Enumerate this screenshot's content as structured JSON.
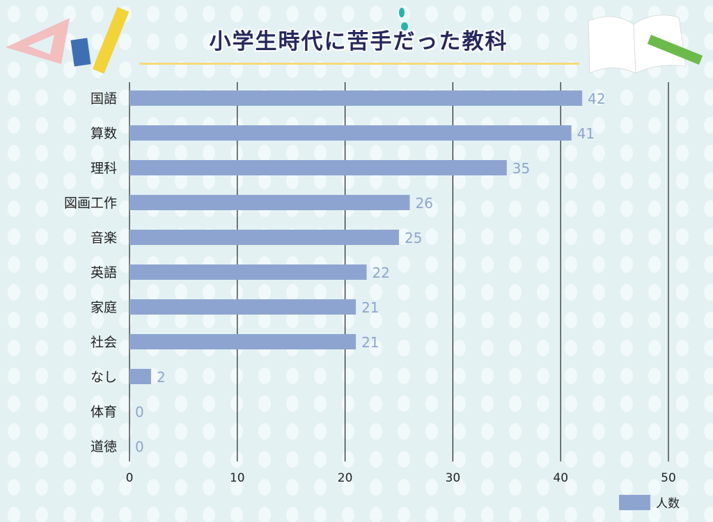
{
  "title": "小学生時代に苦手だった教科",
  "chart_data": {
    "type": "bar",
    "orientation": "horizontal",
    "title": "小学生時代に苦手だった教科",
    "categories": [
      "国語",
      "算数",
      "理科",
      "図画工作",
      "音楽",
      "英語",
      "家庭",
      "社会",
      "なし",
      "体育",
      "道徳"
    ],
    "series": [
      {
        "name": "人数",
        "values": [
          42,
          41,
          35,
          26,
          25,
          22,
          21,
          21,
          2,
          0,
          0
        ],
        "color": "#8ea4d0"
      }
    ],
    "xlim": [
      0,
      50
    ],
    "xticks": [
      0,
      10,
      20,
      30,
      40,
      50
    ],
    "grid": true,
    "legend": "bottom-right",
    "data_labels": true
  },
  "colors": {
    "bar": "#8ea4d0",
    "label": "#8ea4d0",
    "title": "#26285c"
  }
}
